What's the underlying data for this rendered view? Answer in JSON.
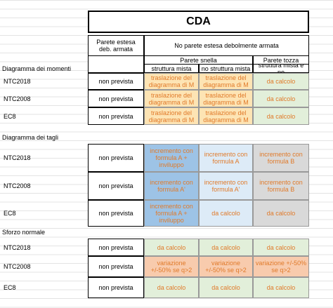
{
  "title": "CDA",
  "header": {
    "col_b": "Parete estesa deb. armata",
    "col_cde": "No parete estesa debolmente armata",
    "parete_snella": "Parete snella",
    "parete_tozza": "Parete tozza",
    "sub": [
      "struttura mista",
      "no struttura mista",
      "struttura mista e no"
    ]
  },
  "sections": [
    {
      "label": "Diagramma dei momenti",
      "rows": [
        {
          "code": "NTC2018",
          "cells": [
            "non prevista",
            "traslazione del diagramma di M",
            "traslazione del diagramma di M",
            "da calcolo"
          ]
        },
        {
          "code": "NTC2008",
          "cells": [
            "non prevista",
            "traslazione del diagramma di M",
            "traslazione del diagramma di M",
            "da calcolo"
          ]
        },
        {
          "code": "EC8",
          "cells": [
            "non prevista",
            "traslazione del diagramma di M",
            "traslazione del diagramma di M",
            "da calcolo"
          ]
        }
      ]
    },
    {
      "label": "Diagramma dei tagli",
      "rows": [
        {
          "code": "NTC2018",
          "cells": [
            "non prevista",
            "incremento con formula A + inviluppo",
            "incremento con formula A",
            "incremento con formula B"
          ]
        },
        {
          "code": "NTC2008",
          "cells": [
            "non prevista",
            "incremento con formula A'",
            "incremento con formula A'",
            "incremento con formula B"
          ]
        },
        {
          "code": "EC8",
          "cells": [
            "non prevista",
            "incremento con formula A + inviluppo",
            "da calcolo",
            "da calcolo"
          ]
        }
      ]
    },
    {
      "label": "Sforzo normale",
      "rows": [
        {
          "code": "NTC2018",
          "cells": [
            "non prevista",
            "da calcolo",
            "da calcolo",
            "da calcolo"
          ]
        },
        {
          "code": "NTC2008",
          "cells": [
            "non prevista",
            "variazione +/-50% se q>2",
            "variazione +/-50% se q>2",
            "variazione +/-50% se q>2"
          ]
        },
        {
          "code": "EC8",
          "cells": [
            "non prevista",
            "da calcolo",
            "da calcolo",
            "da calcolo"
          ]
        }
      ]
    }
  ]
}
